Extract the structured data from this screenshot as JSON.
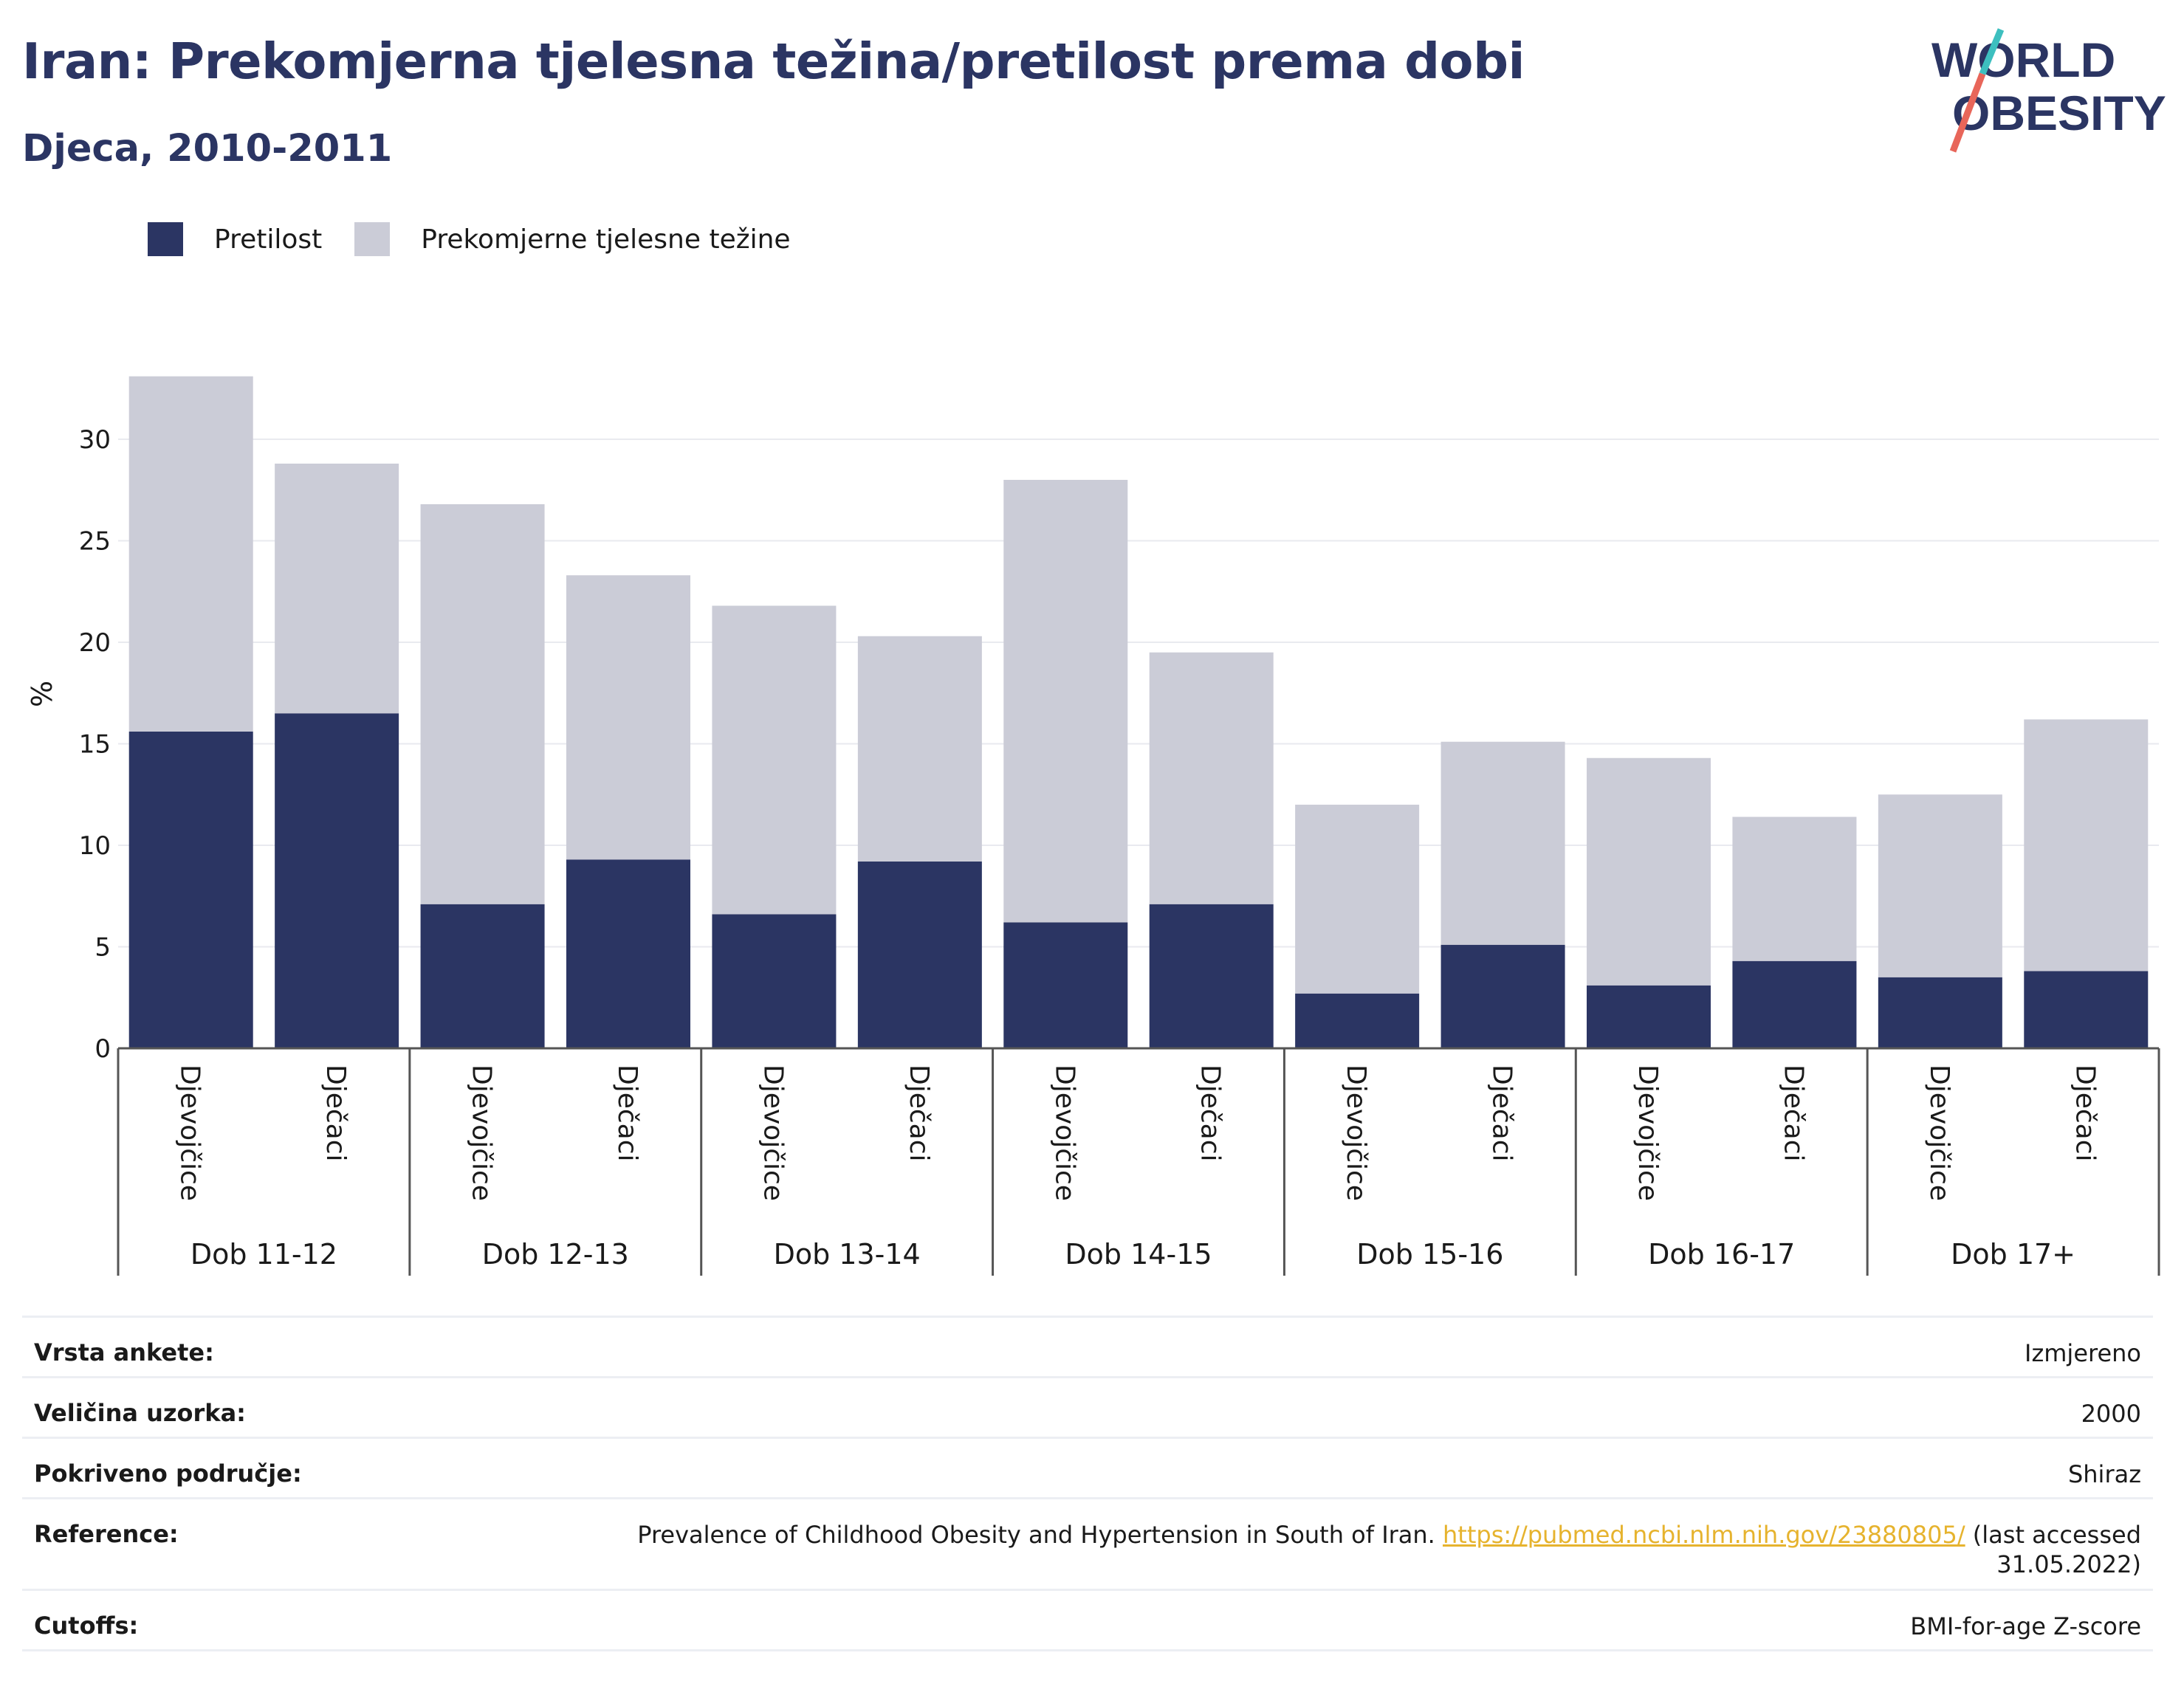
{
  "title": "Iran: Prekomjerna tjelesna težina/pretilost prema dobi",
  "subtitle": "Djeca, 2010-2011",
  "logo": {
    "line1": "WORLD",
    "line2": "OBESITY",
    "colors": {
      "text": "#2b3563",
      "accent1": "#3dbfbf",
      "accent2": "#e8665a"
    }
  },
  "legend": [
    {
      "label": "Pretilost",
      "color": "#2b3563"
    },
    {
      "label": "Prekomjerne tjelesne težine",
      "color": "#cbccd7"
    }
  ],
  "chart_data": {
    "type": "bar",
    "stacked": true,
    "ylabel": "%",
    "xlabel": "",
    "ylim": [
      0,
      33
    ],
    "yticks": [
      "0",
      "5",
      "10",
      "15",
      "20",
      "25",
      "30"
    ],
    "grid": true,
    "legend_position": "top-left",
    "groups": [
      "Dob 11-12",
      "Dob 12-13",
      "Dob 13-14",
      "Dob 14-15",
      "Dob 15-16",
      "Dob 16-17",
      "Dob 17+"
    ],
    "categories": [
      "Djevojčice",
      "Dječaci",
      "Djevojčice",
      "Dječaci",
      "Djevojčice",
      "Dječaci",
      "Djevojčice",
      "Dječaci",
      "Djevojčice",
      "Dječaci",
      "Djevojčice",
      "Dječaci",
      "Djevojčice",
      "Dječaci"
    ],
    "series": [
      {
        "name": "Pretilost",
        "color": "#2b3563",
        "values": [
          15.6,
          16.5,
          7.1,
          9.3,
          6.6,
          9.2,
          6.2,
          7.1,
          2.7,
          5.1,
          3.1,
          4.3,
          3.5,
          3.8
        ]
      },
      {
        "name": "Prekomjerne tjelesne težine",
        "color": "#cbccd7",
        "values": [
          17.5,
          12.3,
          19.7,
          14.0,
          15.2,
          11.1,
          21.8,
          12.4,
          9.3,
          10.0,
          11.2,
          7.1,
          9.0,
          12.4
        ]
      }
    ]
  },
  "meta": [
    {
      "label": "Vrsta ankete:",
      "value": "Izmjereno"
    },
    {
      "label": "Veličina uzorka:",
      "value": "2000"
    },
    {
      "label": "Pokriveno područje:",
      "value": "Shiraz"
    },
    {
      "label": "Reference:",
      "value_pre": "Prevalence of Childhood Obesity and Hypertension in South of Iran.",
      "link": "https://pubmed.ncbi.nlm.nih.gov/23880805/",
      "value_post": "(last accessed",
      "value_line2": "31.05.2022)"
    },
    {
      "label": "Cutoffs:",
      "value": "BMI-for-age Z-score"
    }
  ]
}
